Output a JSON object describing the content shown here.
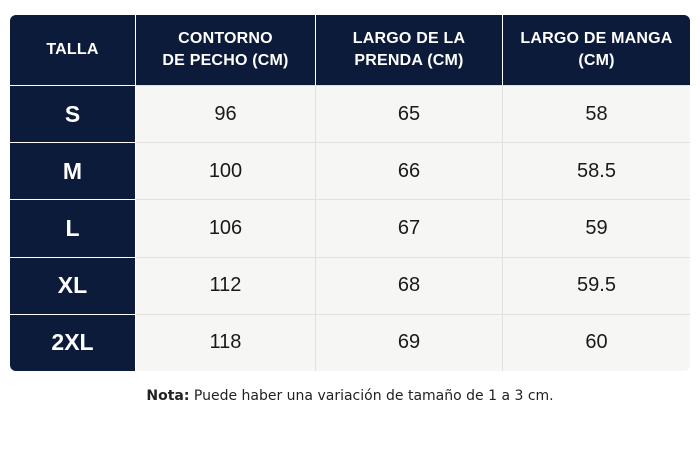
{
  "table": {
    "headers": {
      "size": "TALLA",
      "chest_line1": "CONTORNO",
      "chest_line2": "DE PECHO (CM)",
      "length_line1": "LARGO DE LA",
      "length_line2": "PRENDA (CM)",
      "sleeve_line1": "LARGO DE MANGA",
      "sleeve_line2": "(CM)"
    },
    "rows": [
      {
        "size": "S",
        "chest": "96",
        "length": "65",
        "sleeve": "58"
      },
      {
        "size": "M",
        "chest": "100",
        "length": "66",
        "sleeve": "58.5"
      },
      {
        "size": "L",
        "chest": "106",
        "length": "67",
        "sleeve": "59"
      },
      {
        "size": "XL",
        "chest": "112",
        "length": "68",
        "sleeve": "59.5"
      },
      {
        "size": "2XL",
        "chest": "118",
        "length": "69",
        "sleeve": "60"
      }
    ]
  },
  "note": {
    "label": "Nota:",
    "text": "Puede haber una variación de tamaño de 1 a 3 cm."
  },
  "colors": {
    "header_bg": "#0c1b3a",
    "cell_bg": "#f6f6f4"
  }
}
